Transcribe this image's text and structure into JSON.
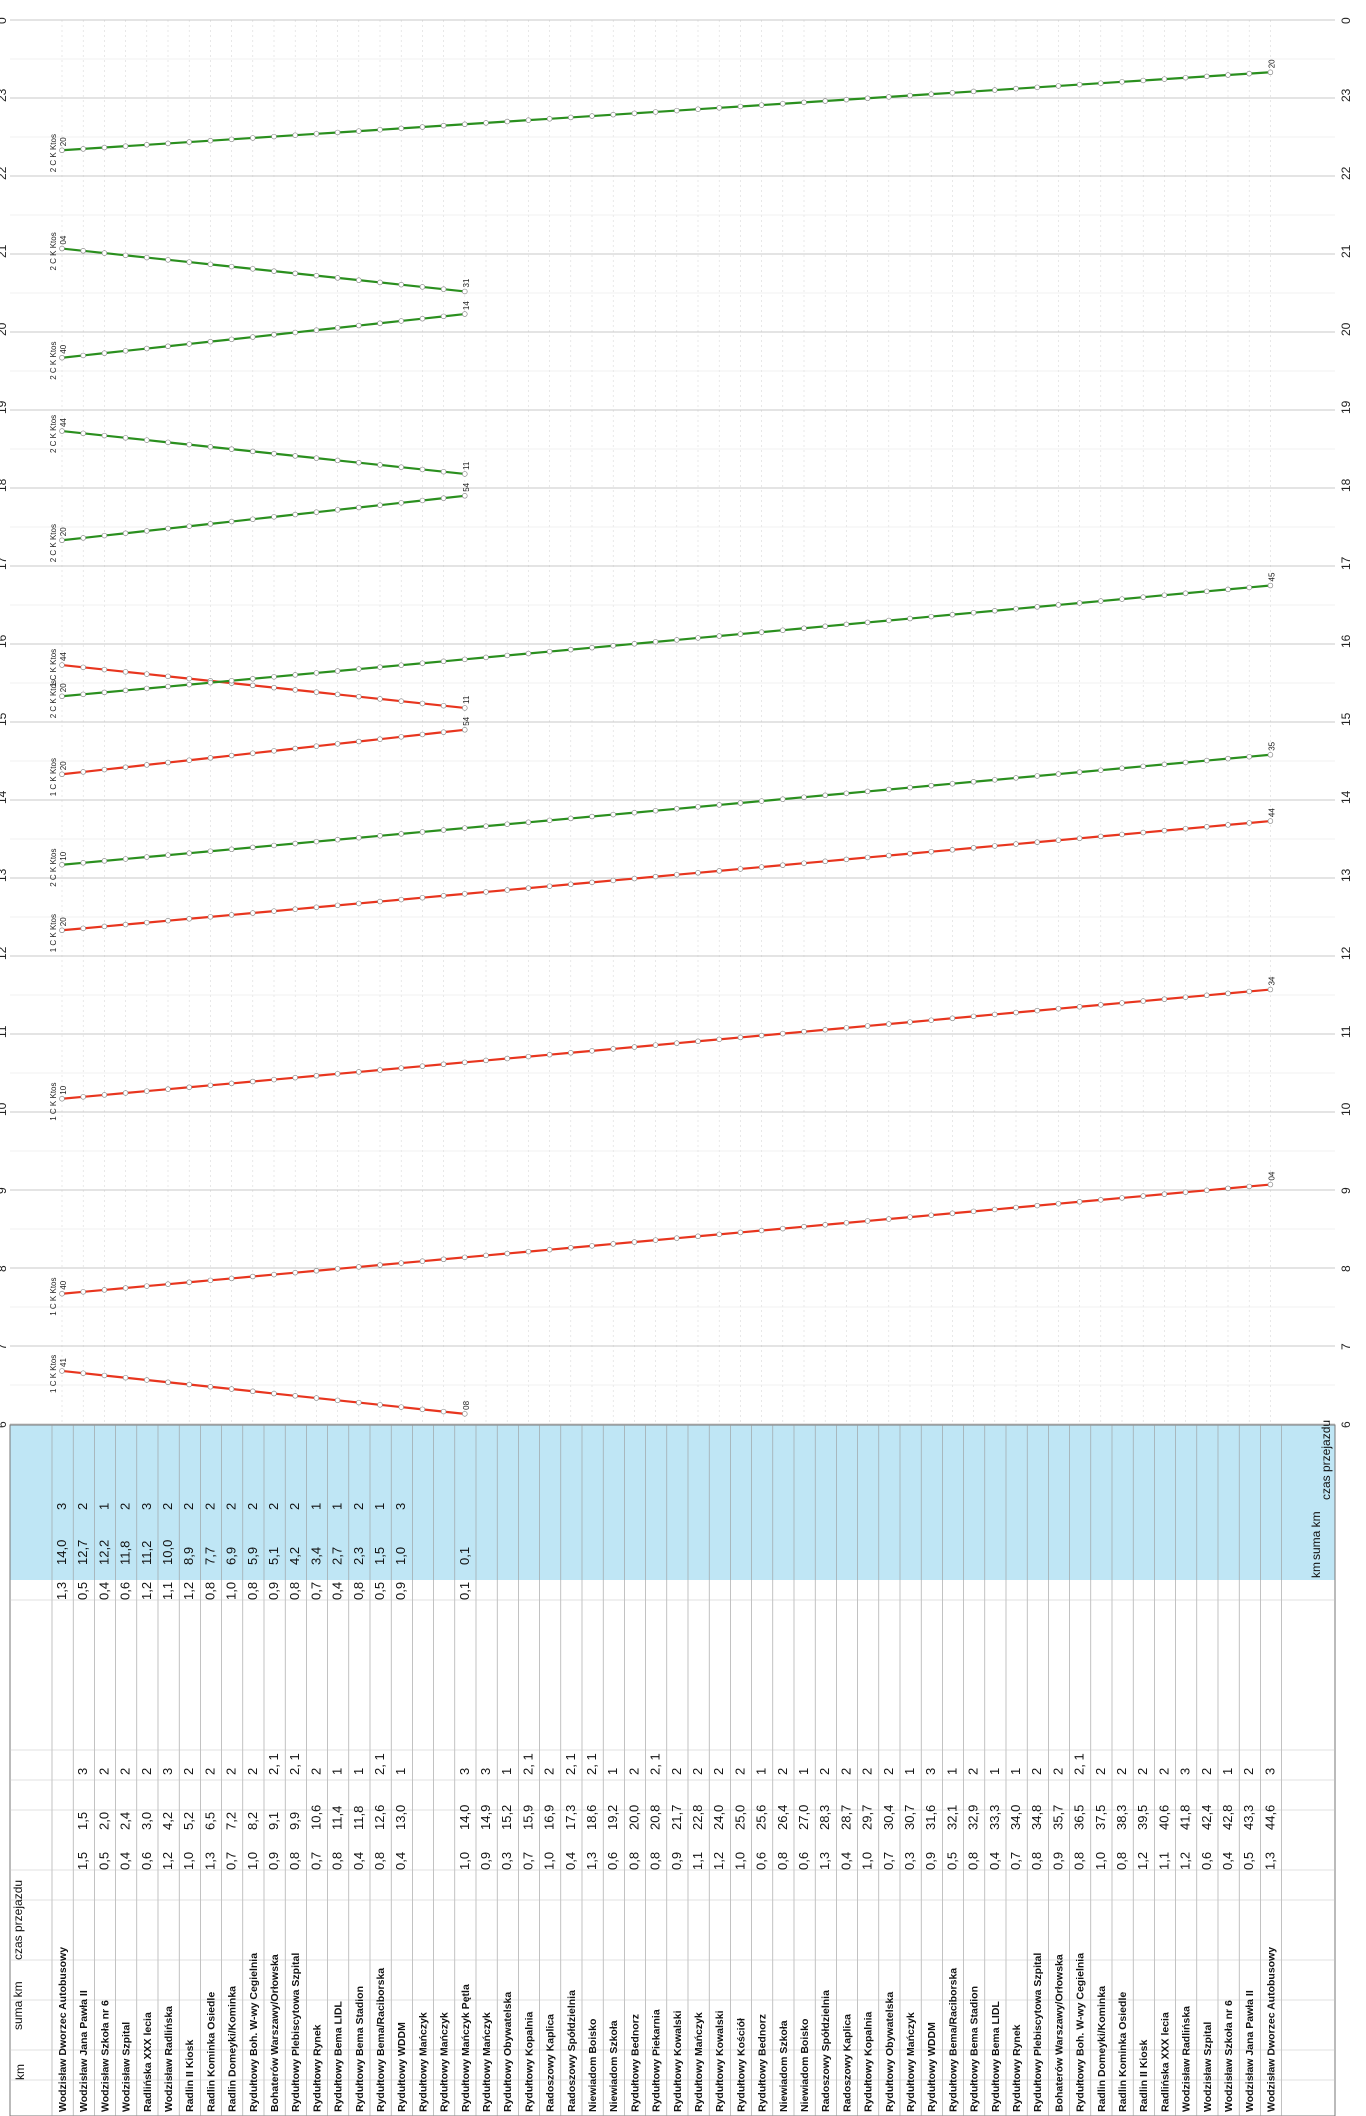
{
  "chart_data": {
    "type": "line",
    "time_axis": {
      "min": 6,
      "max": 24,
      "ticks": [
        6,
        7,
        8,
        9,
        10,
        11,
        12,
        13,
        14,
        15,
        16,
        17,
        18,
        19,
        20,
        21,
        22,
        23,
        0
      ]
    },
    "header": {
      "km": "km",
      "suma_km": "suma km",
      "czas_przejazdu": "czas przejazdu"
    },
    "stops": [
      "Wodzisław Dworzec Autobusowy",
      "Wodzisław Jana Pawła II",
      "Wodzisław Szkoła nr 6",
      "Wodzisław Szpital",
      "Radlińska XXX lecia",
      "Wodzisław Radlińska",
      "Radlin II Kiosk",
      "Radlin Kominka Osiedle",
      "Radlin Domeyki/Kominka",
      "Rydułtowy Boh. W-wy Cegielnia",
      "Bohaterów Warszawy/Orłowska",
      "Rydułtowy Plebiscytowa Szpital",
      "Rydułtowy Rynek",
      "Rydułtowy Bema LIDL",
      "Rydułtowy Bema Stadion",
      "Rydułtowy Bema/Raciborska",
      "Rydułtowy WDDM",
      "Rydułtowy Mańczyk",
      "Rydułtowy Mańczyk",
      "Rydułtowy Mańczyk Pętla",
      "Rydułtowy Mańczyk",
      "Rydułtowy Obywatelska",
      "Rydułtowy Kopalnia",
      "Radoszowy Kaplica",
      "Radoszowy Spółdzielnia",
      "Niewiadom Boisko",
      "Niewiadom Szkoła",
      "Rydułtowy Bednorz",
      "Rydułtowy Piekarnia",
      "Rydułtowy Kowalski",
      "Rydułtowy Mańczyk",
      "Rydułtowy Kowalski",
      "Rydułtowy Kościół",
      "Rydułtowy Bednorz",
      "Niewiadom Szkoła",
      "Niewiadom Boisko",
      "Radoszowy Spółdzielnia",
      "Radoszowy Kaplica",
      "Rydułtowy Kopalnia",
      "Rydułtowy Obywatelska",
      "Rydułtowy Mańczyk",
      "Rydułtowy WDDM",
      "Rydułtowy Bema/Raciborska",
      "Rydułtowy Bema Stadion",
      "Rydułtowy Bema LIDL",
      "Rydułtowy Rynek",
      "Rydułtowy Plebiscytowa Szpital",
      "Bohaterów Warszawy/Orłowska",
      "Rydułtowy Boh. W-wy Cegielnia",
      "Radlin Domeyki/Kominka",
      "Radlin Kominka Osiedle",
      "Radlin II Kiosk",
      "Radlińska XXX lecia",
      "Wodzisław Radlińska",
      "Wodzisław Szpital",
      "Wodzisław Szkoła nr 6",
      "Wodzisław Jana Pawła II",
      "Wodzisław Dworzec Autobusowy"
    ],
    "route_a": [
      {
        "km": "",
        "suma": "",
        "czas": ""
      },
      {
        "km": "1,5",
        "suma": "1,5",
        "czas": "3"
      },
      {
        "km": "0,5",
        "suma": "2,0",
        "czas": "2"
      },
      {
        "km": "0,4",
        "suma": "2,4",
        "czas": "2"
      },
      {
        "km": "0,6",
        "suma": "3,0",
        "czas": "2"
      },
      {
        "km": "1,2",
        "suma": "4,2",
        "czas": "3"
      },
      {
        "km": "1,0",
        "suma": "5,2",
        "czas": "2"
      },
      {
        "km": "1,3",
        "suma": "6,5",
        "czas": "2"
      },
      {
        "km": "0,7",
        "suma": "7,2",
        "czas": "2"
      },
      {
        "km": "1,0",
        "suma": "8,2",
        "czas": "2"
      },
      {
        "km": "0,9",
        "suma": "9,1",
        "czas": "2, 1"
      },
      {
        "km": "0,8",
        "suma": "9,9",
        "czas": "2, 1"
      },
      {
        "km": "0,7",
        "suma": "10,6",
        "czas": "2"
      },
      {
        "km": "0,8",
        "suma": "11,4",
        "czas": "1"
      },
      {
        "km": "0,4",
        "suma": "11,8",
        "czas": "1"
      },
      {
        "km": "0,8",
        "suma": "12,6",
        "czas": "2, 1"
      },
      {
        "km": "0,4",
        "suma": "13,0",
        "czas": "1"
      },
      {
        "km": "",
        "suma": "",
        "czas": ""
      },
      {
        "km": "",
        "suma": "",
        "czas": ""
      },
      {
        "km": "1,0",
        "suma": "14,0",
        "czas": "3"
      },
      {
        "km": "0,9",
        "suma": "14,9",
        "czas": "3"
      },
      {
        "km": "0,3",
        "suma": "15,2",
        "czas": "1"
      },
      {
        "km": "0,7",
        "suma": "15,9",
        "czas": "2, 1"
      },
      {
        "km": "1,0",
        "suma": "16,9",
        "czas": "2"
      },
      {
        "km": "0,4",
        "suma": "17,3",
        "czas": "2, 1"
      },
      {
        "km": "1,3",
        "suma": "18,6",
        "czas": "2, 1"
      },
      {
        "km": "0,6",
        "suma": "19,2",
        "czas": "1"
      },
      {
        "km": "0,8",
        "suma": "20,0",
        "czas": "2"
      },
      {
        "km": "0,8",
        "suma": "20,8",
        "czas": "2, 1"
      },
      {
        "km": "0,9",
        "suma": "21,7",
        "czas": "2"
      },
      {
        "km": "1,1",
        "suma": "22,8",
        "czas": "2"
      },
      {
        "km": "1,2",
        "suma": "24,0",
        "czas": "2"
      },
      {
        "km": "1,0",
        "suma": "25,0",
        "czas": "2"
      },
      {
        "km": "0,6",
        "suma": "25,6",
        "czas": "1"
      },
      {
        "km": "0,8",
        "suma": "26,4",
        "czas": "2"
      },
      {
        "km": "0,6",
        "suma": "27,0",
        "czas": "1"
      },
      {
        "km": "1,3",
        "suma": "28,3",
        "czas": "2"
      },
      {
        "km": "0,4",
        "suma": "28,7",
        "czas": "2"
      },
      {
        "km": "1,0",
        "suma": "29,7",
        "czas": "2"
      },
      {
        "km": "0,7",
        "suma": "30,4",
        "czas": "2"
      },
      {
        "km": "0,3",
        "suma": "30,7",
        "czas": "1"
      },
      {
        "km": "0,9",
        "suma": "31,6",
        "czas": "3"
      },
      {
        "km": "0,5",
        "suma": "32,1",
        "czas": "1"
      },
      {
        "km": "0,8",
        "suma": "32,9",
        "czas": "2"
      },
      {
        "km": "0,4",
        "suma": "33,3",
        "czas": "1"
      },
      {
        "km": "0,7",
        "suma": "34,0",
        "czas": "1"
      },
      {
        "km": "0,8",
        "suma": "34,8",
        "czas": "2"
      },
      {
        "km": "0,9",
        "suma": "35,7",
        "czas": "2"
      },
      {
        "km": "0,8",
        "suma": "36,5",
        "czas": "2, 1"
      },
      {
        "km": "1,0",
        "suma": "37,5",
        "czas": "2"
      },
      {
        "km": "0,8",
        "suma": "38,3",
        "czas": "2"
      },
      {
        "km": "1,2",
        "suma": "39,5",
        "czas": "2"
      },
      {
        "km": "1,1",
        "suma": "40,6",
        "czas": "2"
      },
      {
        "km": "1,2",
        "suma": "41,8",
        "czas": "3"
      },
      {
        "km": "0,6",
        "suma": "42,4",
        "czas": "2"
      },
      {
        "km": "0,4",
        "suma": "42,8",
        "czas": "1"
      },
      {
        "km": "0,5",
        "suma": "43,3",
        "czas": "2"
      },
      {
        "km": "1,3",
        "suma": "44,6",
        "czas": "3"
      }
    ],
    "route_b": [
      {
        "km": "1,3",
        "suma": "14,0",
        "czas": "3"
      },
      {
        "km": "0,5",
        "suma": "12,7",
        "czas": "2"
      },
      {
        "km": "0,4",
        "suma": "12,2",
        "czas": "1"
      },
      {
        "km": "0,6",
        "suma": "11,8",
        "czas": "2"
      },
      {
        "km": "1,2",
        "suma": "11,2",
        "czas": "3"
      },
      {
        "km": "1,1",
        "suma": "10,0",
        "czas": "2"
      },
      {
        "km": "1,2",
        "suma": "8,9",
        "czas": "2"
      },
      {
        "km": "0,8",
        "suma": "7,7",
        "czas": "2"
      },
      {
        "km": "1,0",
        "suma": "6,9",
        "czas": "2"
      },
      {
        "km": "0,8",
        "suma": "5,9",
        "czas": "2"
      },
      {
        "km": "0,9",
        "suma": "5,1",
        "czas": "2"
      },
      {
        "km": "0,8",
        "suma": "4,2",
        "czas": "2"
      },
      {
        "km": "0,7",
        "suma": "3,4",
        "czas": "1"
      },
      {
        "km": "0,4",
        "suma": "2,7",
        "czas": "1"
      },
      {
        "km": "0,8",
        "suma": "2,3",
        "czas": "2"
      },
      {
        "km": "0,5",
        "suma": "1,5",
        "czas": "1"
      },
      {
        "km": "0,9",
        "suma": "1,0",
        "czas": "3"
      },
      {
        "km": "",
        "suma": "",
        "czas": ""
      },
      {
        "km": "",
        "suma": "",
        "czas": ""
      },
      {
        "km": "0,1",
        "suma": "0,1",
        "czas": ""
      }
    ],
    "trips": [
      {
        "line": "1",
        "color": "#e8351e",
        "dep_label": "41",
        "arr_label": "08",
        "tag": "1 C K Ktos",
        "start": 6.68,
        "end": 6.13,
        "first": 0,
        "last": 19
      },
      {
        "line": "1",
        "color": "#e8351e",
        "dep_label": "40",
        "arr_label": "04",
        "tag": "1 C K Ktos",
        "start": 7.67,
        "end": 9.07,
        "first": 0,
        "last": 57
      },
      {
        "line": "1",
        "color": "#e8351e",
        "dep_label": "10",
        "arr_label": "34",
        "tag": "1 C K Ktos",
        "start": 10.17,
        "end": 11.57,
        "first": 0,
        "last": 57
      },
      {
        "line": "1",
        "color": "#e8351e",
        "dep_label": "20",
        "arr_label": "44",
        "tag": "1 C K Ktos",
        "start": 12.33,
        "end": 13.73,
        "first": 0,
        "last": 57
      },
      {
        "line": "1",
        "color": "#e8351e",
        "dep_label": "20",
        "arr_label": "54",
        "tag": "1 C K Ktos",
        "start": 14.33,
        "end": 14.9,
        "first": 0,
        "last": 19
      },
      {
        "line": "1",
        "color": "#e8351e",
        "dep_label": "44",
        "arr_label": "11",
        "tag": "1 C K Ktos",
        "start": 15.73,
        "end": 15.18,
        "first": 0,
        "last": 19
      },
      {
        "line": "2",
        "color": "#2a8f1e",
        "dep_label": "10",
        "arr_label": "35",
        "tag": "2 C K Ktos",
        "start": 13.17,
        "end": 14.58,
        "first": 0,
        "last": 57
      },
      {
        "line": "2",
        "color": "#2a8f1e",
        "dep_label": "20",
        "arr_label": "45",
        "tag": "2 C K Ktos",
        "start": 15.33,
        "end": 16.75,
        "first": 0,
        "last": 57
      },
      {
        "line": "2",
        "color": "#2a8f1e",
        "dep_label": "20",
        "arr_label": "54",
        "tag": "2 C K Ktos",
        "start": 17.33,
        "end": 17.9,
        "first": 0,
        "last": 19
      },
      {
        "line": "2",
        "color": "#2a8f1e",
        "dep_label": "44",
        "arr_label": "11",
        "tag": "2 C K Ktos",
        "start": 18.73,
        "end": 18.18,
        "first": 0,
        "last": 19
      },
      {
        "line": "2",
        "color": "#2a8f1e",
        "dep_label": "40",
        "arr_label": "14",
        "tag": "2 C K Ktos",
        "start": 19.67,
        "end": 20.23,
        "first": 0,
        "last": 19
      },
      {
        "line": "2",
        "color": "#2a8f1e",
        "dep_label": "04",
        "arr_label": "31",
        "tag": "2 C K Ktos",
        "start": 21.07,
        "end": 20.52,
        "first": 0,
        "last": 19
      },
      {
        "line": "2",
        "color": "#2a8f1e",
        "dep_label": "20",
        "arr_label": "20",
        "tag": "2 C K Ktos",
        "start": 22.33,
        "end": 23.33,
        "first": 0,
        "last": 57
      }
    ]
  }
}
